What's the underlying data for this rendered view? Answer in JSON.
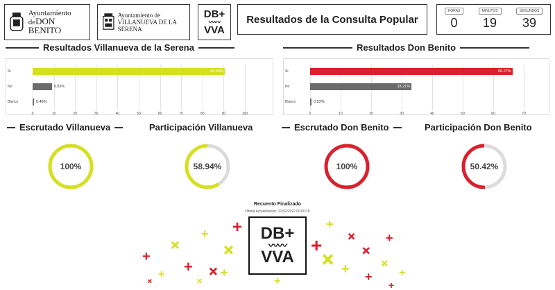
{
  "header": {
    "logo_don_benito": {
      "line1": "Ayuntamiento",
      "line2": "de",
      "line3": "DON BENITO"
    },
    "logo_villanueva": {
      "line1": "Ayuntamiento de",
      "line2": "VILLANUEVA DE LA SERENA"
    },
    "logo_small": {
      "line1": "DB+",
      "line2": "VVA"
    },
    "title": "Resultados de la Consulta Popular",
    "timer": {
      "hours_label": "HORAS",
      "hours": "0",
      "minutes_label": "MINUTOS",
      "minutes": "19",
      "seconds_label": "SEGUNDOS",
      "seconds": "39"
    }
  },
  "villanueva": {
    "heading": "Resultados Villanueva de la Serena",
    "bars": [
      {
        "label": "Si",
        "value": 90.49,
        "text": "90.49%",
        "color": "#d5e021"
      },
      {
        "label": "No",
        "value": 9.03,
        "text": "9.03%",
        "color": "#6b6b6b"
      },
      {
        "label": "Blanco",
        "value": 0.48,
        "text": "0.48%",
        "color": "#6b6b6b"
      }
    ],
    "ticks": [
      "0",
      "10",
      "20",
      "30",
      "40",
      "50",
      "60",
      "70",
      "80",
      "90",
      "100"
    ],
    "xmax": 100,
    "scrutiny_heading": "Escrutado Villanueva",
    "scrutiny_value": 100,
    "scrutiny_text": "100%",
    "participation_heading": "Participación Villanueva",
    "participation_value": 58.94,
    "participation_text": "58.94%",
    "color": "#d5e021"
  },
  "donbenito": {
    "heading": "Resultados Don Benito",
    "bars": [
      {
        "label": "Si",
        "value": 66.27,
        "text": "66.27%",
        "color": "#d9202c"
      },
      {
        "label": "No",
        "value": 33.21,
        "text": "33.21%",
        "color": "#6b6b6b"
      },
      {
        "label": "Blanco",
        "value": 0.52,
        "text": "0.52%",
        "color": "#6b6b6b"
      }
    ],
    "ticks": [
      "0",
      "10",
      "20",
      "30",
      "40",
      "50",
      "60",
      "70"
    ],
    "xmax": 70,
    "scrutiny_heading": "Escrutado Don Benito",
    "scrutiny_value": 100,
    "scrutiny_text": "100%",
    "participation_heading": "Participación Don Benito",
    "participation_value": 50.42,
    "participation_text": "50.42%",
    "color": "#d9202c"
  },
  "footer": {
    "recount_title": "Recuento Finalizado",
    "last_update": "Última Actualización: 21/02/2022 00:00:16",
    "logo_line1": "DB+",
    "logo_line2": "VVA"
  }
}
